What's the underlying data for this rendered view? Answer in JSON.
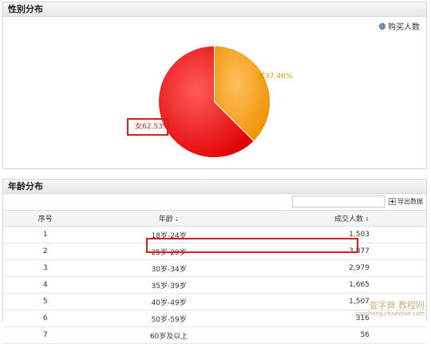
{
  "gender_panel": {
    "title": "性别分布",
    "legend": "购买人数",
    "slices": [
      {
        "label": "女62.53%",
        "value": 62.53,
        "color": "#ee1c1c"
      },
      {
        "label": "男37.46%",
        "value": 37.46,
        "color": "#f5a21c"
      }
    ]
  },
  "age_panel": {
    "title": "年龄分布",
    "search": {
      "value": "",
      "placeholder": ""
    },
    "export_label": "导出数据",
    "columns": [
      "序号",
      "年龄",
      "成交人数"
    ],
    "rows": [
      {
        "idx": "1",
        "age": "18岁-24岁",
        "count": "1,503"
      },
      {
        "idx": "2",
        "age": "25岁-29岁",
        "count": "3,877"
      },
      {
        "idx": "3",
        "age": "30岁-34岁",
        "count": "2,979"
      },
      {
        "idx": "4",
        "age": "35岁-39岁",
        "count": "1,665"
      },
      {
        "idx": "5",
        "age": "40岁-49岁",
        "count": "1,507"
      },
      {
        "idx": "6",
        "age": "50岁-59岁",
        "count": "316"
      },
      {
        "idx": "7",
        "age": "60岁及以上",
        "count": "56"
      }
    ]
  },
  "watermark": {
    "line1": "查字典 教程网",
    "line2": "jiaocheng.chazidian.com"
  }
}
